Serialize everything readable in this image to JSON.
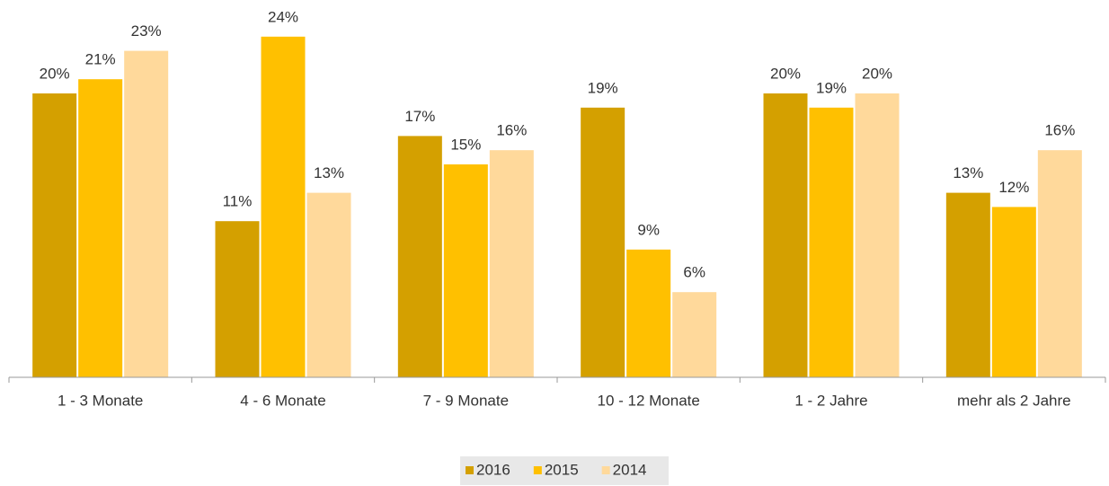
{
  "chart_data": {
    "type": "bar",
    "categories": [
      "1 - 3 Monate",
      "4 - 6 Monate",
      "7 - 9 Monate",
      "10 - 12 Monate",
      "1 - 2 Jahre",
      "mehr als 2 Jahre"
    ],
    "series": [
      {
        "name": "2016",
        "color": "#d4a000",
        "values": [
          20,
          11,
          17,
          19,
          20,
          13
        ],
        "value_labels": [
          "20%",
          "11%",
          "17%",
          "19%",
          "20%",
          "13%"
        ]
      },
      {
        "name": "2015",
        "color": "#ffc000",
        "values": [
          21,
          24,
          15,
          9,
          19,
          12
        ],
        "value_labels": [
          "21%",
          "24%",
          "15%",
          "9%",
          "19%",
          "12%"
        ]
      },
      {
        "name": "2014",
        "color": "#ffd99b",
        "values": [
          23,
          13,
          16,
          6,
          20,
          16
        ],
        "value_labels": [
          "23%",
          "13%",
          "16%",
          "6%",
          "20%",
          "16%"
        ]
      }
    ],
    "ylim": [
      0,
      25
    ],
    "legend": "bottom"
  }
}
